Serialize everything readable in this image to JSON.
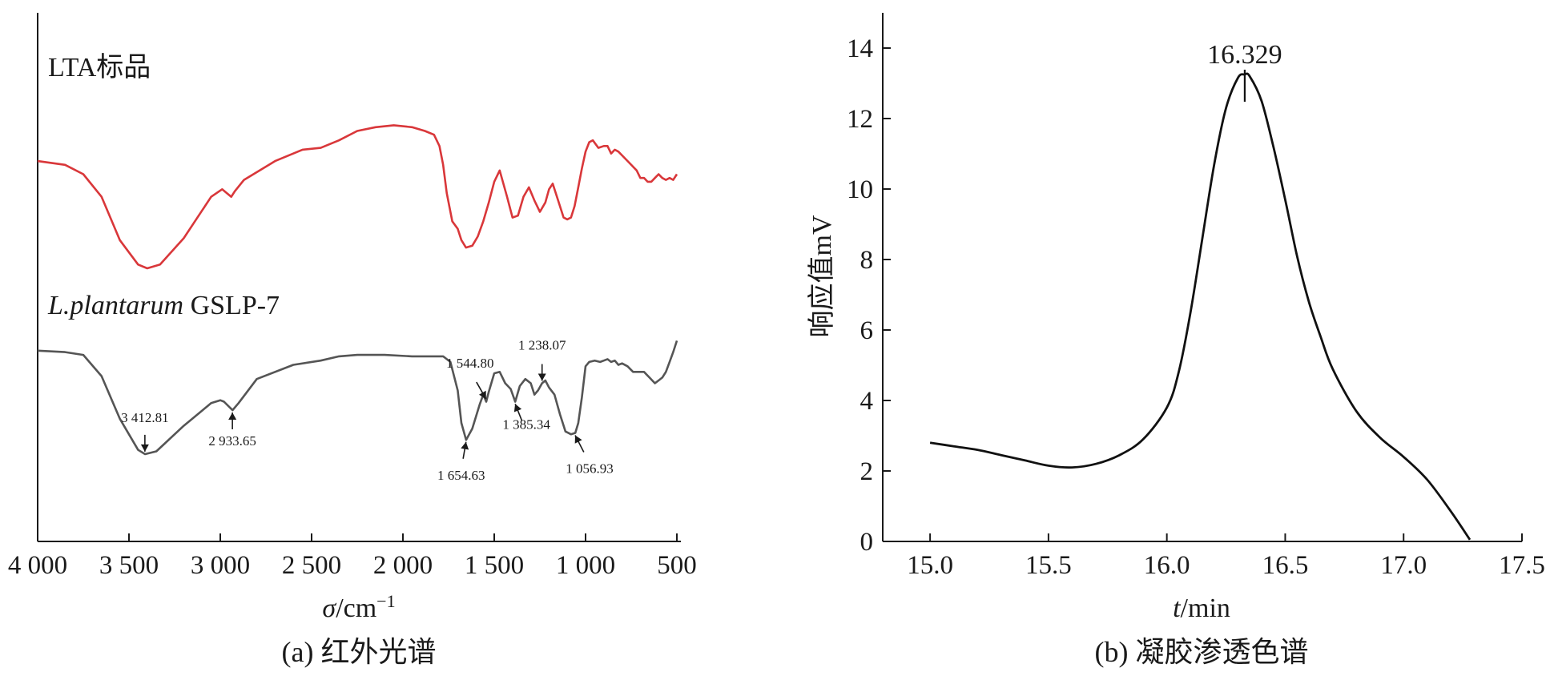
{
  "chart_data": [
    {
      "type": "line",
      "panel": "a",
      "caption": "(a) 红外光谱",
      "xlabel_symbol": "σ",
      "xlabel_unit": "/cm",
      "xlabel_sup": "−1",
      "xlim": [
        4000,
        500
      ],
      "x_reversed": true,
      "xticks": [
        4000,
        3500,
        3000,
        2500,
        2000,
        1500,
        1000,
        500
      ],
      "xtick_labels": [
        "4 000",
        "3 500",
        "3 000",
        "2 500",
        "2 000",
        "1 500",
        "1 000",
        "500"
      ],
      "yaxis_ticks": false,
      "series": [
        {
          "name": "LTA标品",
          "color": "#d9373a",
          "x": [
            4000,
            3850,
            3750,
            3650,
            3550,
            3450,
            3400,
            3330,
            3200,
            3050,
            2990,
            2940,
            2920,
            2870,
            2700,
            2550,
            2450,
            2350,
            2250,
            2150,
            2050,
            1950,
            1880,
            1830,
            1800,
            1780,
            1760,
            1730,
            1700,
            1680,
            1655,
            1620,
            1590,
            1560,
            1530,
            1500,
            1470,
            1430,
            1400,
            1370,
            1340,
            1310,
            1280,
            1250,
            1220,
            1200,
            1180,
            1150,
            1120,
            1100,
            1080,
            1060,
            1040,
            1020,
            1000,
            980,
            960,
            930,
            900,
            880,
            860,
            840,
            820,
            800,
            760,
            720,
            700,
            680,
            660,
            640,
            620,
            600,
            580,
            560,
            540,
            520,
            500
          ],
          "y": [
            0.57,
            0.55,
            0.5,
            0.38,
            0.15,
            0.02,
            0.0,
            0.02,
            0.16,
            0.38,
            0.42,
            0.38,
            0.41,
            0.47,
            0.57,
            0.63,
            0.64,
            0.68,
            0.73,
            0.75,
            0.76,
            0.75,
            0.73,
            0.71,
            0.65,
            0.55,
            0.4,
            0.25,
            0.21,
            0.15,
            0.11,
            0.12,
            0.17,
            0.25,
            0.35,
            0.46,
            0.52,
            0.38,
            0.27,
            0.28,
            0.38,
            0.43,
            0.36,
            0.3,
            0.35,
            0.42,
            0.45,
            0.36,
            0.27,
            0.26,
            0.27,
            0.33,
            0.43,
            0.53,
            0.62,
            0.67,
            0.68,
            0.64,
            0.65,
            0.65,
            0.61,
            0.63,
            0.62,
            0.6,
            0.56,
            0.52,
            0.48,
            0.48,
            0.46,
            0.46,
            0.48,
            0.5,
            0.48,
            0.47,
            0.48,
            0.47,
            0.5
          ]
        },
        {
          "name": "L.plantarum GSLP-7",
          "color": "#555555",
          "x": [
            4000,
            3850,
            3750,
            3650,
            3550,
            3450,
            3412,
            3350,
            3200,
            3050,
            3000,
            2980,
            2933,
            2900,
            2800,
            2600,
            2450,
            2350,
            2250,
            2100,
            1950,
            1850,
            1780,
            1740,
            1700,
            1680,
            1654,
            1620,
            1580,
            1560,
            1544,
            1530,
            1500,
            1470,
            1440,
            1410,
            1385,
            1360,
            1330,
            1300,
            1280,
            1260,
            1238,
            1220,
            1200,
            1170,
            1140,
            1110,
            1080,
            1056,
            1040,
            1020,
            1000,
            980,
            950,
            920,
            900,
            880,
            860,
            840,
            820,
            800,
            770,
            740,
            710,
            680,
            650,
            620,
            600,
            580,
            560,
            540,
            520,
            500
          ],
          "y": [
            0.73,
            0.72,
            0.7,
            0.55,
            0.25,
            0.03,
            0.0,
            0.02,
            0.2,
            0.36,
            0.38,
            0.37,
            0.31,
            0.36,
            0.53,
            0.63,
            0.66,
            0.69,
            0.7,
            0.7,
            0.69,
            0.69,
            0.69,
            0.65,
            0.45,
            0.22,
            0.1,
            0.18,
            0.35,
            0.42,
            0.37,
            0.44,
            0.57,
            0.58,
            0.5,
            0.46,
            0.37,
            0.48,
            0.53,
            0.5,
            0.42,
            0.45,
            0.5,
            0.52,
            0.47,
            0.42,
            0.28,
            0.16,
            0.14,
            0.15,
            0.22,
            0.4,
            0.62,
            0.65,
            0.66,
            0.65,
            0.66,
            0.67,
            0.65,
            0.66,
            0.63,
            0.64,
            0.62,
            0.58,
            0.58,
            0.58,
            0.54,
            0.5,
            0.52,
            0.54,
            0.58,
            0.65,
            0.72,
            0.8
          ]
        }
      ],
      "annotations": [
        "3 412.81",
        "2 933.65",
        "1 654.63",
        "1 544.80",
        "1 385.34",
        "1 238.07",
        "1 056.93"
      ]
    },
    {
      "type": "line",
      "panel": "b",
      "caption": "(b) 凝胶渗透色谱",
      "xlabel_symbol": "t",
      "xlabel_unit": "/min",
      "ylabel": "响应值mV",
      "xlim": [
        14.8,
        17.5
      ],
      "ylim": [
        0,
        15
      ],
      "xticks": [
        15.0,
        15.5,
        16.0,
        16.5,
        17.0,
        17.5
      ],
      "xtick_labels": [
        "15.0",
        "15.5",
        "16.0",
        "16.5",
        "17.0",
        "17.5"
      ],
      "yticks": [
        0,
        2,
        4,
        6,
        8,
        10,
        12,
        14
      ],
      "ytick_labels": [
        "0",
        "2",
        "4",
        "6",
        "8",
        "10",
        "12",
        "14"
      ],
      "peak_label": "16.329",
      "peak_x": 16.329,
      "series": [
        {
          "color": "#111111",
          "x": [
            15.0,
            15.1,
            15.2,
            15.3,
            15.4,
            15.5,
            15.6,
            15.7,
            15.8,
            15.9,
            16.0,
            16.05,
            16.1,
            16.15,
            16.2,
            16.25,
            16.3,
            16.329,
            16.35,
            16.4,
            16.45,
            16.5,
            16.55,
            16.6,
            16.65,
            16.7,
            16.8,
            16.9,
            17.0,
            17.1,
            17.2,
            17.28
          ],
          "y": [
            2.8,
            2.7,
            2.6,
            2.45,
            2.3,
            2.15,
            2.1,
            2.2,
            2.45,
            2.9,
            3.8,
            4.8,
            6.5,
            8.6,
            10.7,
            12.3,
            13.15,
            13.25,
            13.2,
            12.5,
            11.2,
            9.7,
            8.1,
            6.8,
            5.8,
            4.9,
            3.7,
            2.95,
            2.4,
            1.75,
            0.85,
            0.05
          ]
        }
      ]
    }
  ]
}
